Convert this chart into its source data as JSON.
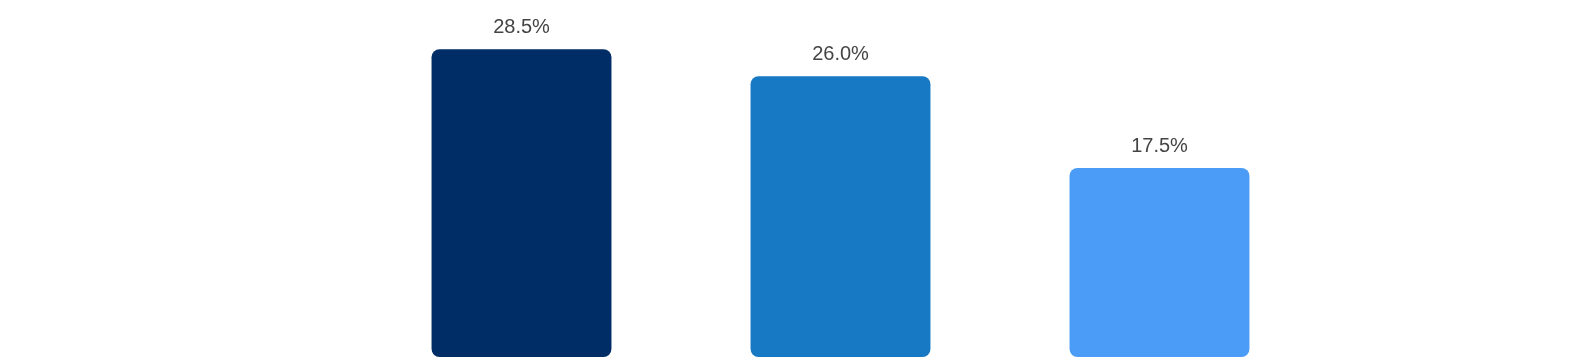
{
  "chart_data": {
    "type": "bar",
    "categories": [
      null,
      null,
      null
    ],
    "values": [
      28.5,
      26.0,
      17.5
    ],
    "colors": [
      "#002d66",
      "#1778c4",
      "#4a9cf7"
    ],
    "value_labels": [
      "28.5%",
      "26.0%",
      "17.5%"
    ]
  }
}
